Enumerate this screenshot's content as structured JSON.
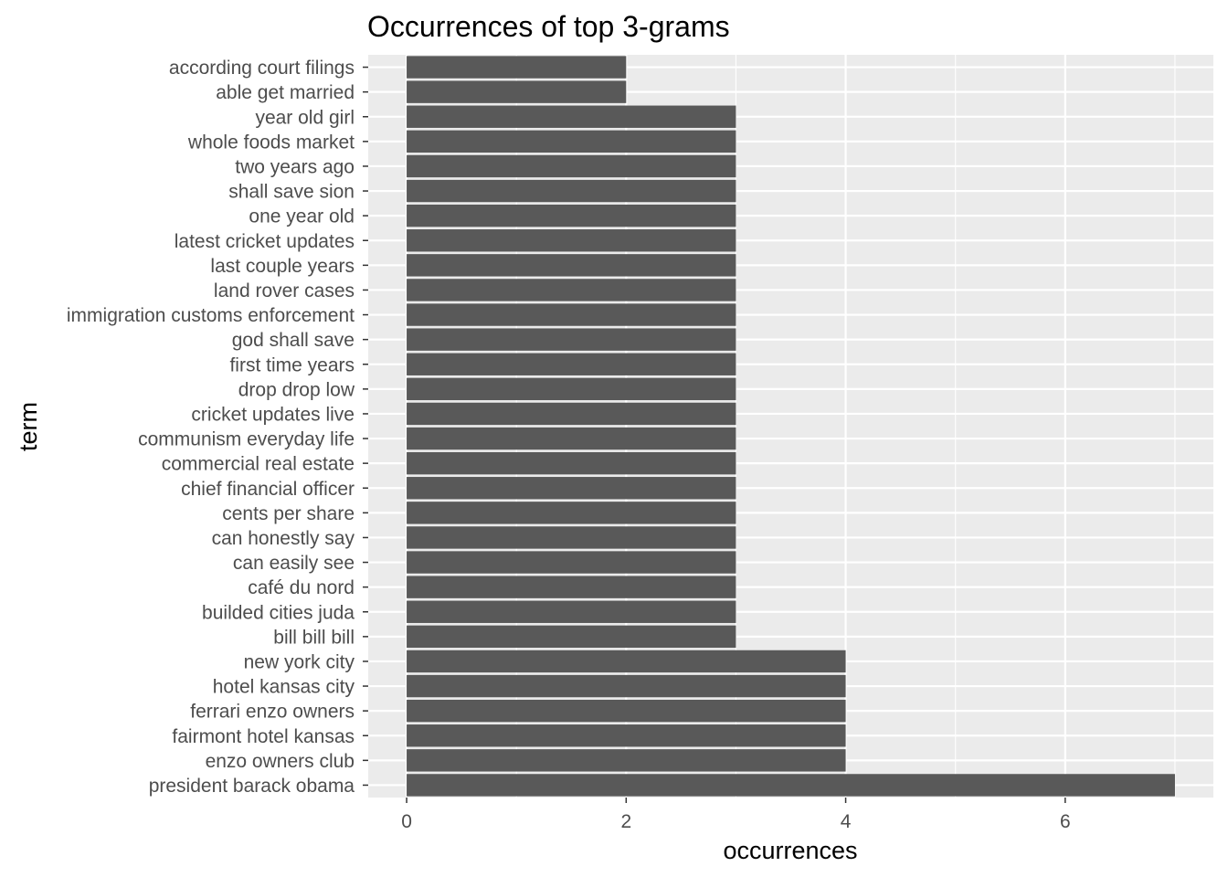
{
  "chart_data": {
    "type": "bar",
    "orientation": "horizontal",
    "title": "Occurrences of top 3-grams",
    "xlabel": "occurrences",
    "ylabel": "term",
    "xlim": [
      -0.35,
      7.35
    ],
    "xticks": [
      0,
      2,
      4,
      6
    ],
    "grid": true,
    "legend": "none",
    "colors": {
      "bar": "#595959",
      "panel": "#ebebeb",
      "grid": "#ffffff"
    },
    "categories": [
      "according court filings",
      "able get married",
      "year old girl",
      "whole foods market",
      "two years ago",
      "shall save sion",
      "one year old",
      "latest cricket updates",
      "last couple years",
      "land rover cases",
      "immigration customs enforcement",
      "god shall save",
      "first time years",
      "drop drop low",
      "cricket updates live",
      "communism everyday life",
      "commercial real estate",
      "chief financial officer",
      "cents per share",
      "can honestly say",
      "can easily see",
      "café du nord",
      "builded cities juda",
      "bill bill bill",
      "new york city",
      "hotel kansas city",
      "ferrari enzo owners",
      "fairmont hotel kansas",
      "enzo owners club",
      "president barack obama"
    ],
    "values": [
      2,
      2,
      3,
      3,
      3,
      3,
      3,
      3,
      3,
      3,
      3,
      3,
      3,
      3,
      3,
      3,
      3,
      3,
      3,
      3,
      3,
      3,
      3,
      3,
      4,
      4,
      4,
      4,
      4,
      7
    ]
  }
}
